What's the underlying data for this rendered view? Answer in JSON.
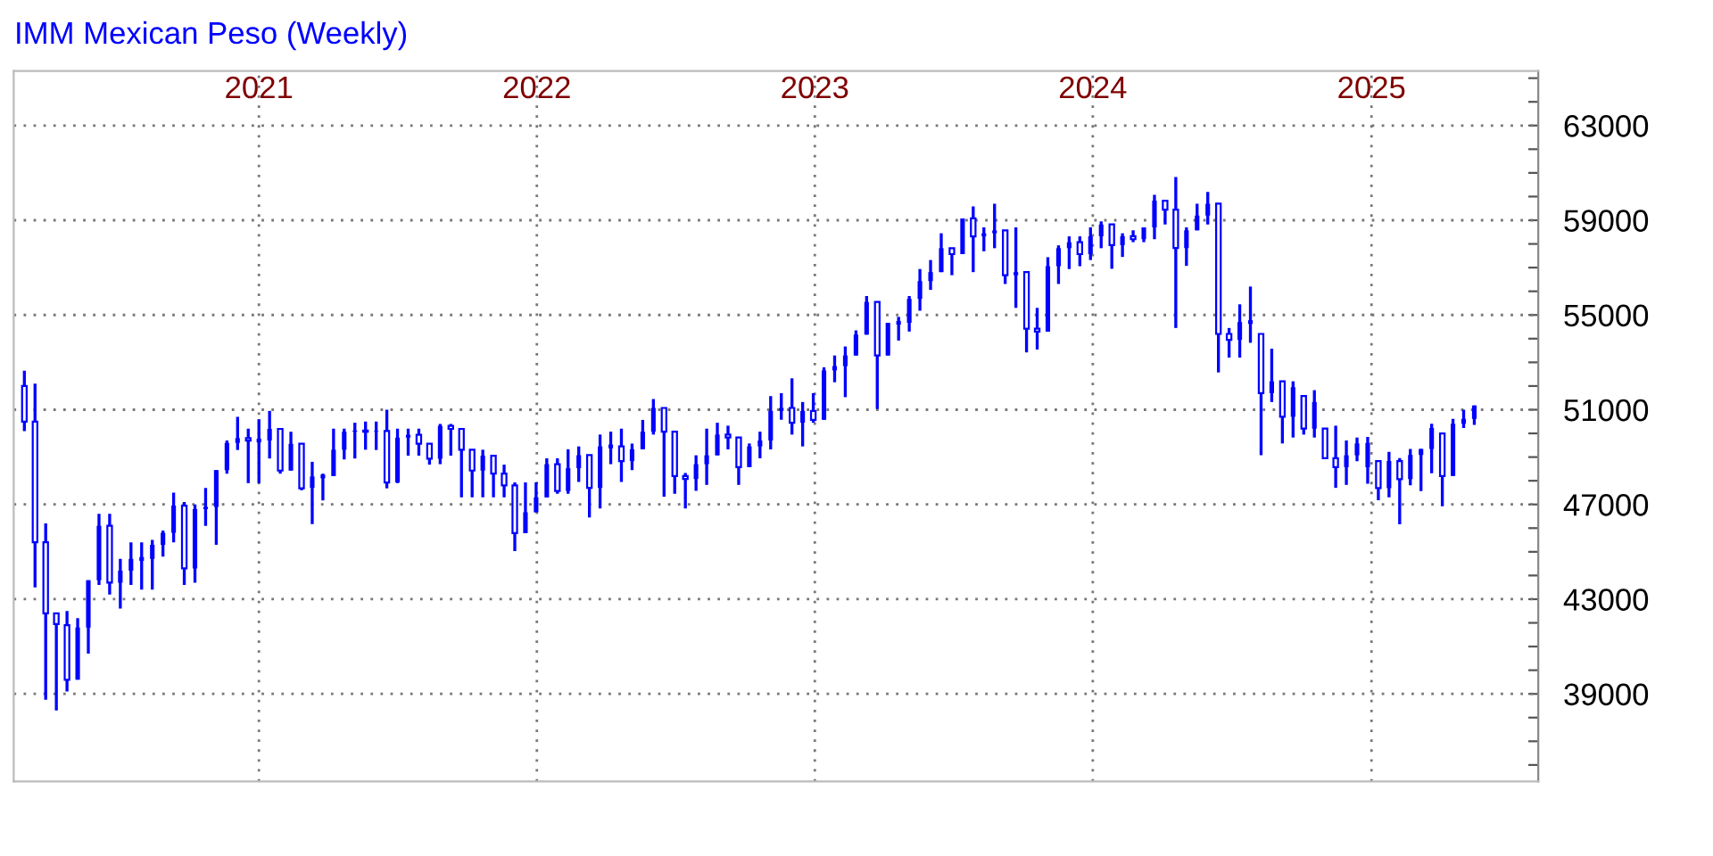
{
  "chart_data": {
    "type": "candlestick",
    "title": "IMM Mexican Peso (Weekly)",
    "color": "#0000ff",
    "x": [
      "2020-02-28",
      "2020-03-13",
      "2020-03-27",
      "2020-04-10",
      "2020-04-24",
      "2020-05-08",
      "2020-05-22",
      "2020-06-05",
      "2020-06-19",
      "2020-07-03",
      "2020-07-17",
      "2020-07-31",
      "2020-08-14",
      "2020-08-28",
      "2020-09-11",
      "2020-09-25",
      "2020-10-09",
      "2020-10-23",
      "2020-11-06",
      "2020-11-20",
      "2020-12-04",
      "2020-12-18",
      "2021-01-01",
      "2021-01-15",
      "2021-01-29",
      "2021-02-12",
      "2021-02-26",
      "2021-03-12",
      "2021-03-26",
      "2021-04-09",
      "2021-04-23",
      "2021-05-07",
      "2021-05-21",
      "2021-06-04",
      "2021-06-18",
      "2021-07-02",
      "2021-07-16",
      "2021-07-30",
      "2021-08-13",
      "2021-08-27",
      "2021-09-10",
      "2021-09-24",
      "2021-10-08",
      "2021-10-22",
      "2021-11-05",
      "2021-11-19",
      "2021-12-03",
      "2021-12-17",
      "2021-12-31",
      "2022-01-14",
      "2022-01-28",
      "2022-02-11",
      "2022-02-25",
      "2022-03-11",
      "2022-03-25",
      "2022-04-08",
      "2022-04-22",
      "2022-05-06",
      "2022-05-20",
      "2022-06-03",
      "2022-06-17",
      "2022-07-01",
      "2022-07-15",
      "2022-07-29",
      "2022-08-12",
      "2022-08-26",
      "2022-09-09",
      "2022-09-23",
      "2022-10-07",
      "2022-10-21",
      "2022-11-04",
      "2022-11-18",
      "2022-12-02",
      "2022-12-16",
      "2022-12-30",
      "2023-01-13",
      "2023-01-27",
      "2023-02-10",
      "2023-02-24",
      "2023-03-10",
      "2023-03-24",
      "2023-04-07",
      "2023-04-21",
      "2023-05-05",
      "2023-05-19",
      "2023-06-02",
      "2023-06-16",
      "2023-06-30",
      "2023-07-14",
      "2023-07-28",
      "2023-08-11",
      "2023-08-25",
      "2023-09-08",
      "2023-09-22",
      "2023-10-06",
      "2023-10-20",
      "2023-11-03",
      "2023-11-17",
      "2023-12-01",
      "2023-12-15",
      "2023-12-29",
      "2024-01-12",
      "2024-01-26",
      "2024-02-09",
      "2024-02-23",
      "2024-03-08",
      "2024-03-22",
      "2024-04-05",
      "2024-04-19",
      "2024-05-03",
      "2024-05-17",
      "2024-05-31",
      "2024-06-14",
      "2024-06-28",
      "2024-07-12",
      "2024-07-26",
      "2024-08-09",
      "2024-08-23",
      "2024-09-06",
      "2024-09-20",
      "2024-10-04",
      "2024-10-18",
      "2024-11-01",
      "2024-11-15",
      "2024-11-29",
      "2024-12-13",
      "2024-12-27",
      "2025-01-10",
      "2025-01-24",
      "2025-02-07",
      "2025-02-21",
      "2025-03-07",
      "2025-03-21",
      "2025-04-04",
      "2025-04-18",
      "2025-05-02",
      "2025-05-16"
    ],
    "ohlc": [
      [
        52000,
        52650,
        50100,
        50500
      ],
      [
        50500,
        52100,
        43500,
        45400
      ],
      [
        45400,
        46200,
        38750,
        42400
      ],
      [
        42400,
        42400,
        38300,
        41950
      ],
      [
        41900,
        42500,
        39100,
        39600
      ],
      [
        39600,
        42200,
        39600,
        41800
      ],
      [
        41800,
        43800,
        40700,
        43800
      ],
      [
        43800,
        46600,
        43600,
        46100
      ],
      [
        46100,
        46600,
        43200,
        43700
      ],
      [
        43700,
        44700,
        42600,
        44200
      ],
      [
        44200,
        45400,
        43600,
        44700
      ],
      [
        44700,
        45400,
        43400,
        44700
      ],
      [
        44700,
        45500,
        43400,
        45300
      ],
      [
        45300,
        45900,
        44800,
        45800
      ],
      [
        45800,
        47500,
        45400,
        46950
      ],
      [
        46950,
        47100,
        43600,
        44300
      ],
      [
        44300,
        47000,
        43700,
        46800
      ],
      [
        46800,
        47700,
        46100,
        46900
      ],
      [
        46900,
        48450,
        45300,
        48450
      ],
      [
        48450,
        49700,
        48300,
        49600
      ],
      [
        49600,
        50700,
        49300,
        49800
      ],
      [
        49800,
        50200,
        47900,
        49700
      ],
      [
        49700,
        50600,
        47900,
        49700
      ],
      [
        49700,
        50950,
        48940,
        50190
      ],
      [
        50190,
        50200,
        48300,
        48430
      ],
      [
        48430,
        50070,
        48430,
        49560
      ],
      [
        49560,
        49560,
        47600,
        47680
      ],
      [
        47700,
        48800,
        46170,
        48180
      ],
      [
        48180,
        48300,
        47170,
        48180
      ],
      [
        48200,
        50200,
        48200,
        49310
      ],
      [
        49310,
        50200,
        48900,
        50070
      ],
      [
        50070,
        50450,
        48940,
        50120
      ],
      [
        50120,
        50500,
        49310,
        50070
      ],
      [
        50070,
        50500,
        49300,
        50100
      ],
      [
        50100,
        51000,
        47680,
        47930
      ],
      [
        47930,
        50200,
        47900,
        49820
      ],
      [
        49820,
        50200,
        49060,
        49940
      ],
      [
        49940,
        50200,
        49060,
        49560
      ],
      [
        49560,
        49560,
        48680,
        48930
      ],
      [
        48930,
        50400,
        48700,
        50320
      ],
      [
        50320,
        50400,
        49060,
        50190
      ],
      [
        50190,
        50190,
        47300,
        49310
      ],
      [
        49310,
        49310,
        47300,
        48430
      ],
      [
        48430,
        49310,
        47300,
        49060
      ],
      [
        49060,
        49060,
        47300,
        48300
      ],
      [
        48300,
        48680,
        47300,
        47800
      ],
      [
        47800,
        47930,
        45030,
        45790
      ],
      [
        45790,
        47930,
        45790,
        46670
      ],
      [
        46670,
        47930,
        46670,
        47300
      ],
      [
        47300,
        48950,
        47300,
        48700
      ],
      [
        48700,
        48950,
        47450,
        47570
      ],
      [
        47570,
        49330,
        47450,
        48530
      ],
      [
        48530,
        49450,
        47950,
        49080
      ],
      [
        49080,
        49080,
        46450,
        47700
      ],
      [
        47700,
        49950,
        46830,
        49450
      ],
      [
        49450,
        50075,
        48700,
        49450
      ],
      [
        49450,
        50200,
        47950,
        48830
      ],
      [
        48830,
        49570,
        48450,
        49330
      ],
      [
        49330,
        50570,
        49330,
        50070
      ],
      [
        50070,
        51450,
        49950,
        51075
      ],
      [
        51075,
        51075,
        47325,
        50070
      ],
      [
        50070,
        50070,
        47450,
        48200
      ],
      [
        48200,
        48330,
        46830,
        48075
      ],
      [
        48075,
        49075,
        47575,
        48700
      ],
      [
        48700,
        50200,
        47825,
        49075
      ],
      [
        49075,
        50450,
        49075,
        49950
      ],
      [
        49950,
        50325,
        49325,
        49825
      ],
      [
        49825,
        49825,
        47825,
        48575
      ],
      [
        48575,
        49575,
        48575,
        49450
      ],
      [
        49450,
        50075,
        48950,
        49700
      ],
      [
        49700,
        51575,
        49325,
        50950
      ],
      [
        50950,
        51700,
        50575,
        51075
      ],
      [
        51075,
        52325,
        49950,
        50450
      ],
      [
        50450,
        51325,
        49450,
        50950
      ],
      [
        50950,
        51700,
        50450,
        50575
      ],
      [
        50575,
        52790,
        50575,
        52660
      ],
      [
        52660,
        53290,
        52160,
        52840
      ],
      [
        52840,
        53670,
        51530,
        53290
      ],
      [
        53290,
        54350,
        53290,
        54170
      ],
      [
        54170,
        55800,
        54170,
        55550
      ],
      [
        55550,
        55550,
        51030,
        53290
      ],
      [
        53290,
        54670,
        53290,
        54670
      ],
      [
        54670,
        54920,
        53920,
        54670
      ],
      [
        54670,
        55800,
        54300,
        55680
      ],
      [
        55680,
        56940,
        55180,
        56430
      ],
      [
        56430,
        57320,
        56060,
        56810
      ],
      [
        56810,
        58450,
        56810,
        57820
      ],
      [
        57820,
        57820,
        56680,
        57570
      ],
      [
        57570,
        59080,
        57570,
        59080
      ],
      [
        59080,
        59580,
        56810,
        58320
      ],
      [
        58320,
        58700,
        57690,
        58450
      ],
      [
        58450,
        59700,
        57820,
        58570
      ],
      [
        58570,
        58570,
        56310,
        56680
      ],
      [
        56680,
        58700,
        55300,
        56810
      ],
      [
        56810,
        56810,
        53420,
        54420
      ],
      [
        54420,
        55300,
        53540,
        54300
      ],
      [
        54300,
        57440,
        54300,
        57060
      ],
      [
        57060,
        57940,
        56310,
        57820
      ],
      [
        57820,
        58320,
        56940,
        58070
      ],
      [
        58070,
        58320,
        57060,
        57570
      ],
      [
        57570,
        58700,
        57320,
        58320
      ],
      [
        58320,
        58950,
        57820,
        58825
      ],
      [
        58825,
        58825,
        56950,
        57950
      ],
      [
        57950,
        58450,
        57450,
        58325
      ],
      [
        58325,
        58575,
        58075,
        58200
      ],
      [
        58200,
        58700,
        58075,
        58700
      ],
      [
        58700,
        60075,
        58200,
        59825
      ],
      [
        59825,
        59825,
        58825,
        59450
      ],
      [
        59450,
        60825,
        54450,
        57825
      ],
      [
        57825,
        58700,
        57075,
        58575
      ],
      [
        58575,
        59700,
        58575,
        59200
      ],
      [
        59200,
        60200,
        58825,
        59700
      ],
      [
        59700,
        59700,
        52575,
        54200
      ],
      [
        54200,
        54450,
        53200,
        53950
      ],
      [
        53950,
        55450,
        53200,
        54700
      ],
      [
        54700,
        56200,
        53825,
        54700
      ],
      [
        54200,
        54200,
        49075,
        51700
      ],
      [
        51700,
        53575,
        51325,
        52200
      ],
      [
        52200,
        52200,
        49575,
        50700
      ],
      [
        50700,
        52200,
        49825,
        51950
      ],
      [
        51575,
        51575,
        49950,
        50200
      ],
      [
        50200,
        51825,
        49825,
        51325
      ],
      [
        50200,
        50200,
        48950,
        48950
      ],
      [
        48950,
        50325,
        47700,
        48575
      ],
      [
        48575,
        49700,
        47825,
        49075
      ],
      [
        49075,
        49825,
        48825,
        49575
      ],
      [
        48575,
        49850,
        47870,
        49600
      ],
      [
        48830,
        48830,
        47180,
        47690
      ],
      [
        47690,
        49220,
        47300,
        48830
      ],
      [
        48830,
        48960,
        46160,
        48070
      ],
      [
        48070,
        49340,
        47810,
        49090
      ],
      [
        49090,
        49340,
        47560,
        49340
      ],
      [
        49340,
        50410,
        48320,
        50230
      ],
      [
        50000,
        50000,
        46920,
        48200
      ],
      [
        48200,
        50610,
        48200,
        50410
      ],
      [
        50410,
        51000,
        50230,
        50610
      ],
      [
        50610,
        51180,
        50360,
        51180
      ]
    ],
    "xlim": [
      "2020-02-14",
      "2025-08-08"
    ],
    "xticks": [
      {
        "value": "2021-01-01",
        "label": "2021"
      },
      {
        "value": "2022-01-01",
        "label": "2022"
      },
      {
        "value": "2023-01-01",
        "label": "2023"
      },
      {
        "value": "2024-01-01",
        "label": "2024"
      },
      {
        "value": "2025-01-01",
        "label": "2025"
      }
    ],
    "ylim": [
      35300,
      65300
    ],
    "yticks": [
      {
        "value": 36000,
        "label": null
      },
      {
        "value": 37000,
        "label": null
      },
      {
        "value": 38000,
        "label": null
      },
      39000,
      {
        "value": 40000,
        "label": null
      },
      {
        "value": 41000,
        "label": null
      },
      {
        "value": 42000,
        "label": null
      },
      43000,
      {
        "value": 44000,
        "label": null
      },
      {
        "value": 45000,
        "label": null
      },
      {
        "value": 46000,
        "label": null
      },
      47000,
      {
        "value": 48000,
        "label": null
      },
      {
        "value": 49000,
        "label": null
      },
      {
        "value": 50000,
        "label": null
      },
      51000,
      {
        "value": 52000,
        "label": null
      },
      {
        "value": 53000,
        "label": null
      },
      {
        "value": 54000,
        "label": null
      },
      55000,
      {
        "value": 56000,
        "label": null
      },
      {
        "value": 57000,
        "label": null
      },
      {
        "value": 58000,
        "label": null
      },
      59000,
      {
        "value": 60000,
        "label": null
      },
      {
        "value": 61000,
        "label": null
      },
      {
        "value": 62000,
        "label": null
      },
      63000,
      {
        "value": 64000,
        "label": null
      },
      {
        "value": 65000,
        "label": null
      }
    ],
    "grid": true,
    "line_style": "dotted"
  }
}
